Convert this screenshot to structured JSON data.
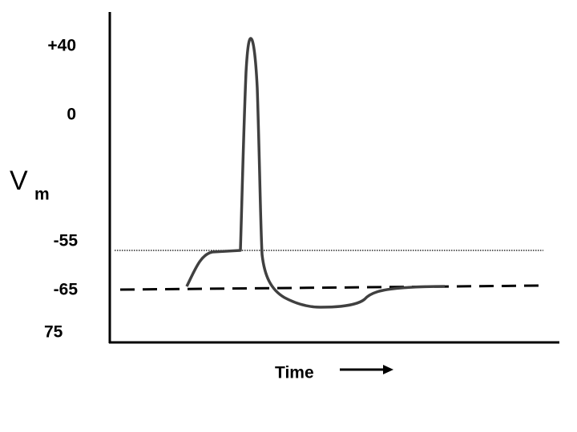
{
  "y_axis": {
    "labels": [
      "+40",
      "0",
      "-55",
      "-65",
      "75"
    ],
    "title": "V",
    "title_subscript": "m"
  },
  "x_axis": {
    "title": "Time"
  }
}
